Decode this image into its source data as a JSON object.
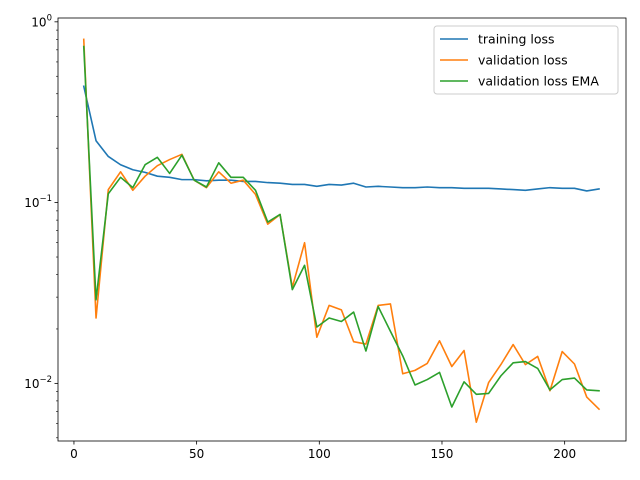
{
  "chart_data": {
    "type": "line",
    "title": "",
    "xlabel": "",
    "ylabel": "",
    "xlim": [
      -6.5,
      225
    ],
    "ylim": [
      0.0048,
      1.05
    ],
    "yscale": "log",
    "grid": false,
    "legend_position": "top-right",
    "xticks": [
      0,
      50,
      100,
      150,
      200
    ],
    "yticks": [
      {
        "value": 0.01,
        "base": "10",
        "exp": "−2"
      },
      {
        "value": 0.1,
        "base": "10",
        "exp": "−1"
      },
      {
        "value": 1,
        "base": "10",
        "exp": "0"
      }
    ],
    "x": [
      4,
      9,
      14,
      19,
      24,
      29,
      34,
      39,
      44,
      49,
      54,
      59,
      64,
      69,
      74,
      79,
      84,
      89,
      94,
      99,
      104,
      109,
      114,
      119,
      124,
      129,
      134,
      139,
      144,
      149,
      154,
      159,
      164,
      169,
      174,
      179,
      184,
      189,
      194,
      199,
      204,
      209,
      214
    ],
    "series": [
      {
        "name": "training loss",
        "color": "#1f77b4",
        "values": [
          0.44,
          0.22,
          0.18,
          0.162,
          0.152,
          0.147,
          0.14,
          0.138,
          0.134,
          0.134,
          0.132,
          0.133,
          0.133,
          0.131,
          0.131,
          0.129,
          0.128,
          0.126,
          0.126,
          0.123,
          0.126,
          0.125,
          0.128,
          0.122,
          0.123,
          0.122,
          0.121,
          0.121,
          0.122,
          0.121,
          0.121,
          0.12,
          0.12,
          0.12,
          0.119,
          0.118,
          0.117,
          0.119,
          0.121,
          0.12,
          0.12,
          0.116,
          0.119
        ]
      },
      {
        "name": "validation loss",
        "color": "#ff7f0e",
        "values": [
          0.8,
          0.023,
          0.118,
          0.148,
          0.117,
          0.14,
          0.16,
          0.173,
          0.185,
          0.133,
          0.121,
          0.148,
          0.128,
          0.133,
          0.111,
          0.076,
          0.086,
          0.034,
          0.06,
          0.018,
          0.027,
          0.0255,
          0.017,
          0.0165,
          0.027,
          0.0275,
          0.0113,
          0.0118,
          0.0129,
          0.0172,
          0.0124,
          0.0152,
          0.0061,
          0.0101,
          0.0127,
          0.0164,
          0.0127,
          0.0141,
          0.0091,
          0.015,
          0.0128,
          0.0084,
          0.0072
        ]
      },
      {
        "name": "validation loss EMA",
        "color": "#2ca02c",
        "values": [
          0.73,
          0.029,
          0.112,
          0.138,
          0.121,
          0.162,
          0.178,
          0.145,
          0.183,
          0.133,
          0.122,
          0.166,
          0.138,
          0.138,
          0.117,
          0.078,
          0.086,
          0.033,
          0.045,
          0.0205,
          0.023,
          0.022,
          0.0248,
          0.0151,
          0.0266,
          0.0194,
          0.0142,
          0.0098,
          0.0105,
          0.0115,
          0.0074,
          0.0102,
          0.0087,
          0.0088,
          0.011,
          0.013,
          0.0132,
          0.0121,
          0.0092,
          0.0105,
          0.0107,
          0.0092,
          0.0091
        ]
      }
    ]
  }
}
